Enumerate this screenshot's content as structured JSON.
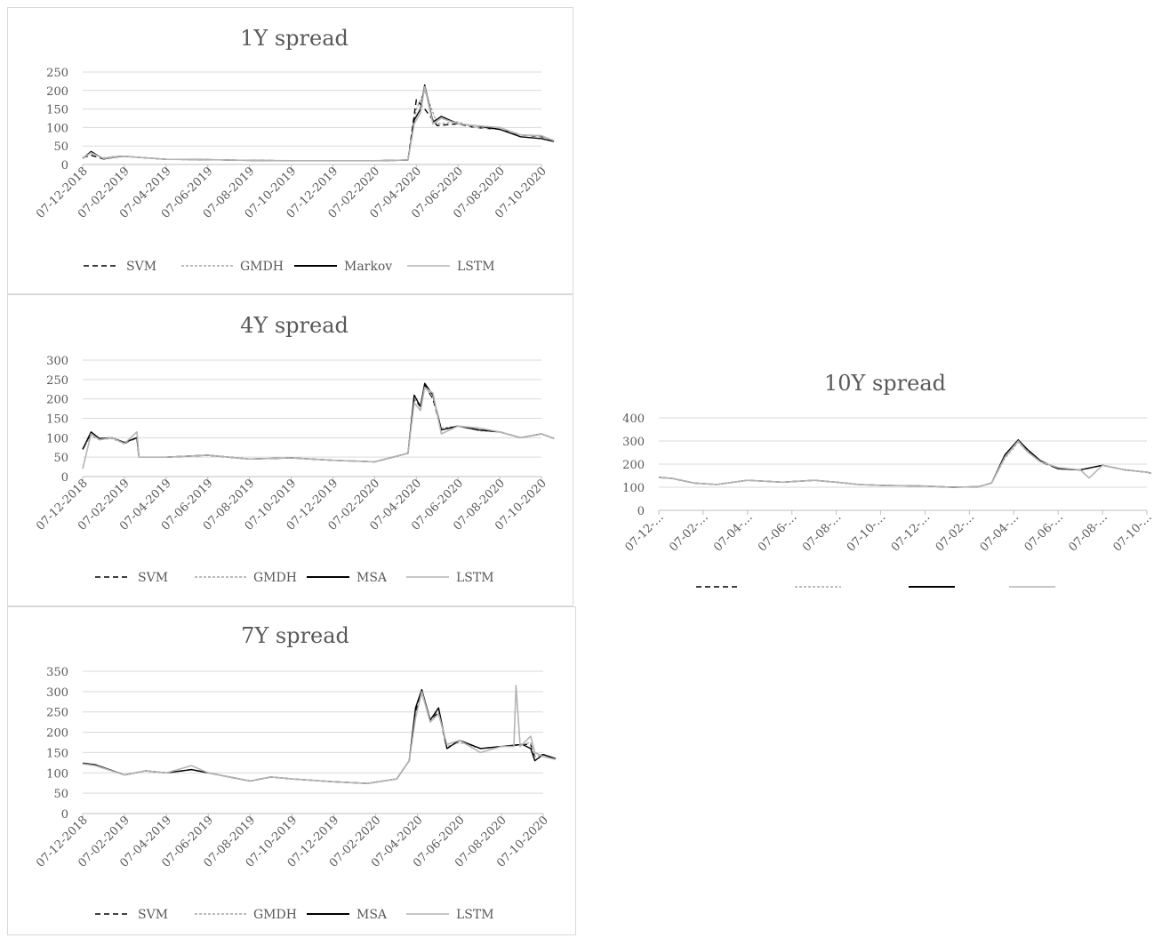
{
  "chart_data": [
    {
      "type": "line",
      "title": "1Y spread",
      "x_categories": [
        "07-12-2018",
        "07-02-2019",
        "07-04-2019",
        "07-06-2019",
        "07-08-2019",
        "07-10-2019",
        "07-12-2019",
        "07-02-2020",
        "07-04-2020",
        "07-06-2020",
        "07-08-2020",
        "07-10-2020"
      ],
      "ylim": [
        0,
        250
      ],
      "yticks": [
        0,
        50,
        100,
        150,
        200,
        250
      ],
      "grid": true,
      "legend": "bottom",
      "series": [
        {
          "name": "SVM",
          "style": "dash",
          "color": "#000000",
          "x": [
            0,
            0.2,
            0.5,
            0.8,
            1,
            2,
            3,
            4,
            5,
            6,
            7,
            7.8,
            8,
            8.2,
            8.5,
            9,
            9.4,
            10,
            10.5,
            11,
            11.3
          ],
          "y": [
            18,
            25,
            15,
            22,
            22,
            14,
            13,
            11,
            10,
            10,
            10,
            12,
            175,
            150,
            105,
            110,
            100,
            95,
            80,
            75,
            65
          ]
        },
        {
          "name": "GMDH",
          "style": "dot",
          "color": "#a6a6a6",
          "x": [
            0,
            0.2,
            0.5,
            0.8,
            1,
            2,
            3,
            4,
            5,
            6,
            7,
            7.8,
            8,
            8.2,
            8.5,
            9,
            9.4,
            10,
            10.5,
            11,
            11.3
          ],
          "y": [
            18,
            30,
            18,
            22,
            22,
            14,
            13,
            11,
            10,
            10,
            10,
            12,
            150,
            200,
            110,
            115,
            100,
            95,
            80,
            75,
            65
          ]
        },
        {
          "name": "Markov",
          "style": "solid",
          "color": "#000000",
          "x": [
            0,
            0.2,
            0.5,
            0.8,
            1,
            2,
            3,
            4,
            5,
            6,
            7,
            7.8,
            7.95,
            8.1,
            8.2,
            8.4,
            8.6,
            9,
            9.4,
            10,
            10.5,
            11,
            11.3
          ],
          "y": [
            16,
            35,
            15,
            20,
            22,
            14,
            13,
            11,
            10,
            10,
            10,
            12,
            120,
            150,
            215,
            115,
            130,
            110,
            105,
            95,
            75,
            70,
            62
          ]
        },
        {
          "name": "LSTM",
          "style": "solid",
          "color": "#b4b4b4",
          "x": [
            0,
            0.2,
            0.5,
            0.8,
            1,
            2,
            3,
            4,
            5,
            6,
            7,
            7.8,
            7.95,
            8.1,
            8.2,
            8.4,
            8.6,
            9,
            9.4,
            10,
            10.5,
            11,
            11.3
          ],
          "y": [
            16,
            32,
            16,
            21,
            22,
            14,
            13,
            11,
            10,
            10,
            10,
            12,
            110,
            140,
            210,
            110,
            125,
            110,
            105,
            100,
            80,
            78,
            64
          ]
        }
      ]
    },
    {
      "type": "line",
      "title": "4Y spread",
      "x_categories": [
        "07-12-2018",
        "07-02-2019",
        "07-04-2019",
        "07-06-2019",
        "07-08-2019",
        "07-10-2019",
        "07-12-2019",
        "07-02-2020",
        "07-04-2020",
        "07-06-2020",
        "07-08-2020",
        "07-10-2020"
      ],
      "ylim": [
        0,
        300
      ],
      "yticks": [
        0,
        50,
        100,
        150,
        200,
        250,
        300
      ],
      "grid": true,
      "legend": "bottom",
      "series": [
        {
          "name": "SVM",
          "style": "dash",
          "color": "#000000",
          "x": [
            0,
            0.2,
            0.4,
            0.7,
            1,
            1.3,
            1.35,
            2,
            3,
            4,
            5,
            6,
            7,
            7.8,
            7.95,
            8.1,
            8.2,
            8.4,
            8.6,
            9,
            9.5,
            10,
            10.5,
            11,
            11.3
          ],
          "y": [
            70,
            110,
            95,
            100,
            85,
            100,
            50,
            50,
            55,
            45,
            48,
            42,
            38,
            60,
            200,
            180,
            235,
            200,
            120,
            130,
            120,
            115,
            100,
            110,
            98
          ]
        },
        {
          "name": "GMDH",
          "style": "dot",
          "color": "#a6a6a6",
          "x": [
            0,
            0.2,
            0.4,
            0.7,
            1,
            1.3,
            1.35,
            2,
            3,
            4,
            5,
            6,
            7,
            7.8,
            7.95,
            8.1,
            8.2,
            8.4,
            8.6,
            9,
            9.5,
            10,
            10.5,
            11,
            11.3
          ],
          "y": [
            72,
            105,
            95,
            98,
            85,
            100,
            50,
            50,
            55,
            45,
            48,
            42,
            38,
            60,
            200,
            185,
            230,
            205,
            125,
            130,
            118,
            115,
            100,
            110,
            98
          ]
        },
        {
          "name": "MSA",
          "style": "solid",
          "color": "#000000",
          "x": [
            0,
            0.2,
            0.4,
            0.7,
            1,
            1.3,
            1.35,
            2,
            3,
            4,
            5,
            6,
            7,
            7.8,
            7.95,
            8.1,
            8.2,
            8.4,
            8.6,
            9,
            9.5,
            10,
            10.5,
            11,
            11.3
          ],
          "y": [
            70,
            115,
            98,
            100,
            88,
            100,
            50,
            50,
            55,
            45,
            48,
            42,
            38,
            60,
            210,
            180,
            240,
            210,
            120,
            130,
            120,
            115,
            100,
            110,
            98
          ]
        },
        {
          "name": "LSTM",
          "style": "solid",
          "color": "#b4b4b4",
          "x": [
            0,
            0.2,
            0.4,
            0.7,
            1,
            1.3,
            1.35,
            2,
            3,
            4,
            5,
            6,
            7,
            7.8,
            7.95,
            8.1,
            8.2,
            8.4,
            8.6,
            9,
            9.5,
            10,
            10.5,
            11,
            11.3
          ],
          "y": [
            20,
            110,
            95,
            100,
            85,
            115,
            50,
            50,
            55,
            45,
            48,
            42,
            38,
            60,
            190,
            170,
            230,
            215,
            110,
            130,
            125,
            115,
            100,
            110,
            98
          ]
        }
      ]
    },
    {
      "type": "line",
      "title": "7Y spread",
      "x_categories": [
        "07-12-2018",
        "07-02-2019",
        "07-04-2019",
        "07-06-2019",
        "07-08-2019",
        "07-10-2019",
        "07-12-2019",
        "07-02-2020",
        "07-04-2020",
        "07-06-2020",
        "07-08-2020",
        "07-10-2020"
      ],
      "ylim": [
        0,
        350
      ],
      "yticks": [
        0,
        50,
        100,
        150,
        200,
        250,
        300,
        350
      ],
      "grid": true,
      "legend": "bottom",
      "series": [
        {
          "name": "SVM",
          "style": "dash",
          "color": "#000000",
          "x": [
            0,
            0.3,
            1,
            1.5,
            2,
            2.6,
            3,
            4,
            4.5,
            5,
            6,
            6.8,
            7.5,
            7.8,
            7.95,
            8.1,
            8.3,
            8.5,
            8.7,
            9,
            9.5,
            10,
            10.5,
            10.7,
            10.8,
            11,
            11.3
          ],
          "y": [
            122,
            120,
            95,
            105,
            100,
            108,
            100,
            80,
            90,
            85,
            78,
            74,
            85,
            130,
            250,
            300,
            230,
            250,
            160,
            180,
            160,
            165,
            170,
            170,
            140,
            145,
            135
          ]
        },
        {
          "name": "GMDH",
          "style": "dot",
          "color": "#a6a6a6",
          "x": [
            0,
            0.3,
            1,
            1.5,
            2,
            2.6,
            3,
            4,
            4.5,
            5,
            6,
            6.8,
            7.5,
            7.8,
            7.95,
            8.1,
            8.3,
            8.5,
            8.7,
            9,
            9.5,
            10,
            10.5,
            10.7,
            10.8,
            11,
            11.3
          ],
          "y": [
            122,
            120,
            95,
            105,
            100,
            108,
            100,
            80,
            90,
            85,
            78,
            74,
            85,
            130,
            240,
            295,
            230,
            255,
            165,
            175,
            160,
            165,
            170,
            175,
            140,
            145,
            135
          ]
        },
        {
          "name": "MSA",
          "style": "solid",
          "color": "#000000",
          "x": [
            0,
            0.3,
            1,
            1.5,
            2,
            2.6,
            3,
            4,
            4.5,
            5,
            6,
            6.8,
            7.5,
            7.8,
            7.95,
            8.1,
            8.3,
            8.5,
            8.7,
            9,
            9.5,
            10,
            10.5,
            10.7,
            10.8,
            11,
            11.3
          ],
          "y": [
            124,
            120,
            95,
            105,
            100,
            108,
            100,
            80,
            90,
            85,
            78,
            74,
            85,
            130,
            260,
            305,
            230,
            260,
            160,
            180,
            160,
            165,
            170,
            160,
            130,
            145,
            135
          ]
        },
        {
          "name": "LSTM",
          "style": "solid",
          "color": "#b4b4b4",
          "x": [
            0,
            0.3,
            1,
            1.5,
            2,
            2.6,
            3,
            4,
            4.5,
            5,
            6,
            6.8,
            7.5,
            7.8,
            7.95,
            8.1,
            8.3,
            8.5,
            8.7,
            9,
            9.5,
            10,
            10.3,
            10.35,
            10.45,
            10.7,
            10.8,
            11,
            11.3
          ],
          "y": [
            122,
            118,
            95,
            105,
            100,
            118,
            100,
            80,
            90,
            85,
            78,
            74,
            85,
            130,
            235,
            300,
            225,
            245,
            170,
            180,
            150,
            165,
            165,
            315,
            165,
            190,
            150,
            140,
            133
          ]
        }
      ]
    },
    {
      "type": "line",
      "title": "10Y spread",
      "x_categories": [
        "07-12-…",
        "07-02-…",
        "07-04-…",
        "07-06-…",
        "07-08-…",
        "07-10-…",
        "07-12-…",
        "07-02-…",
        "07-04-…",
        "07-06-…",
        "07-08-…",
        "07-10-…"
      ],
      "ylim": [
        0,
        400
      ],
      "yticks": [
        0,
        100,
        200,
        300,
        400
      ],
      "grid": true,
      "legend": "bottom",
      "series": [
        {
          "name": "",
          "style": "dash",
          "color": "#000000",
          "x": [
            0,
            0.3,
            0.8,
            1.3,
            2,
            2.8,
            3.5,
            4,
            4.5,
            5,
            6,
            6.6,
            7.2,
            7.5,
            7.8,
            8.1,
            8.3,
            8.6,
            9,
            9.5,
            10,
            10.5,
            11,
            11.3
          ],
          "y": [
            142,
            138,
            118,
            112,
            130,
            122,
            130,
            122,
            112,
            108,
            105,
            100,
            102,
            118,
            230,
            300,
            260,
            210,
            180,
            175,
            195,
            175,
            165,
            150
          ]
        },
        {
          "name": "",
          "style": "dot",
          "color": "#a6a6a6",
          "x": [
            0,
            0.3,
            0.8,
            1.3,
            2,
            2.8,
            3.5,
            4,
            4.5,
            5,
            6,
            6.6,
            7.2,
            7.5,
            7.8,
            8.1,
            8.3,
            8.6,
            9,
            9.5,
            10,
            10.5,
            11,
            11.3
          ],
          "y": [
            142,
            138,
            118,
            112,
            130,
            122,
            130,
            122,
            112,
            108,
            105,
            100,
            102,
            118,
            225,
            295,
            255,
            215,
            180,
            175,
            195,
            175,
            165,
            150
          ]
        },
        {
          "name": "",
          "style": "solid",
          "color": "#000000",
          "x": [
            0,
            0.3,
            0.8,
            1.3,
            2,
            2.8,
            3.5,
            4,
            4.5,
            5,
            6,
            6.6,
            7.2,
            7.5,
            7.8,
            8.1,
            8.3,
            8.6,
            9,
            9.5,
            10,
            10.5,
            11,
            11.3
          ],
          "y": [
            143,
            138,
            118,
            112,
            130,
            122,
            130,
            122,
            112,
            108,
            105,
            100,
            102,
            118,
            240,
            305,
            265,
            215,
            180,
            175,
            195,
            175,
            165,
            150
          ]
        },
        {
          "name": "",
          "style": "solid",
          "color": "#b4b4b4",
          "x": [
            0,
            0.3,
            0.8,
            1.3,
            2,
            2.8,
            3.5,
            4,
            4.5,
            5,
            6,
            6.6,
            7.2,
            7.5,
            7.8,
            8.1,
            8.3,
            8.6,
            9,
            9.5,
            9.7,
            10,
            10.5,
            11,
            11.3
          ],
          "y": [
            142,
            138,
            118,
            112,
            130,
            122,
            130,
            122,
            112,
            108,
            105,
            100,
            102,
            118,
            230,
            300,
            255,
            210,
            185,
            175,
            140,
            195,
            175,
            165,
            150
          ]
        }
      ]
    }
  ]
}
